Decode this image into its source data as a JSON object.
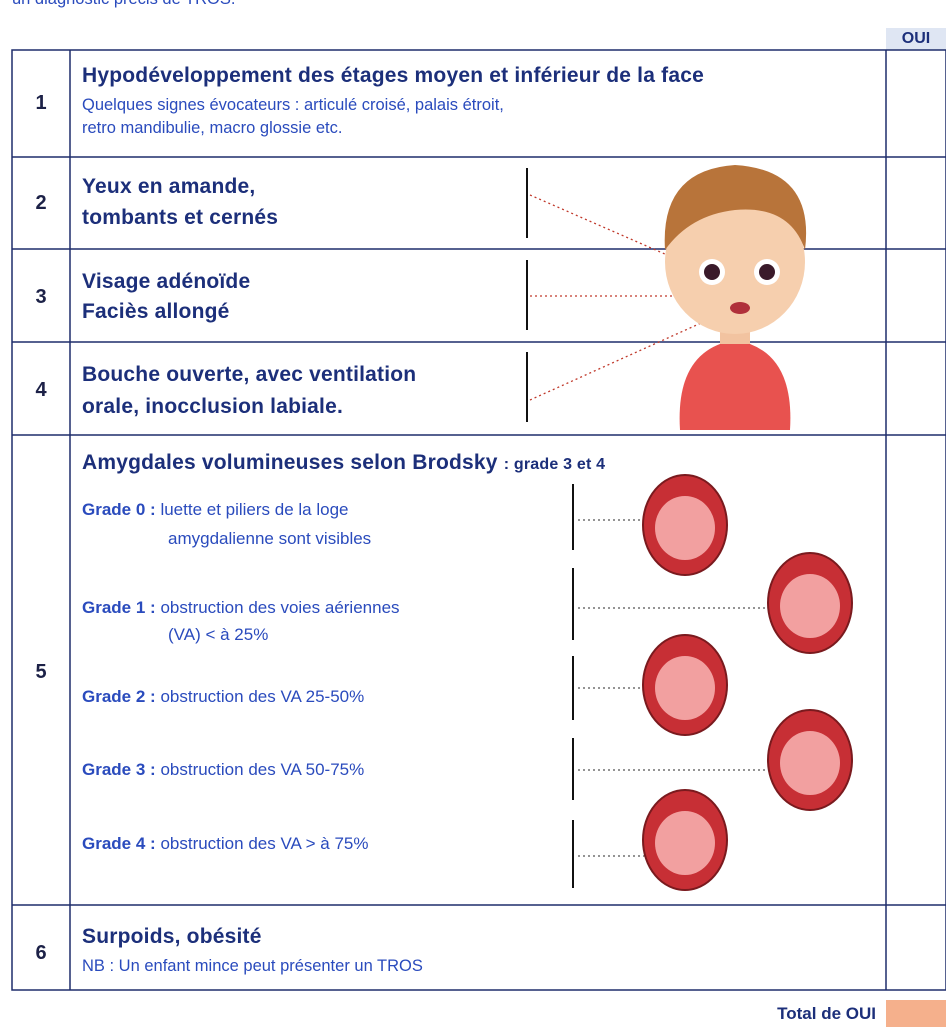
{
  "intro": "un diagnostic précis de TROS.",
  "header": {
    "oui": "OUI"
  },
  "rows": [
    {
      "number": "1",
      "title_lines": [
        "Hypodéveloppement des étages moyen et inférieur de la face"
      ],
      "subtitle_lines": [
        "Quelques signes évocateurs : articulé croisé, palais étroit,",
        "retro mandibulie, macro glossie etc."
      ]
    },
    {
      "number": "2",
      "title_lines": [
        "Yeux en amande,",
        "tombants et cernés"
      ]
    },
    {
      "number": "3",
      "title_lines": [
        "Visage adénoïde",
        "Faciès allongé"
      ]
    },
    {
      "number": "4",
      "title_lines": [
        "Bouche ouverte, avec ventilation",
        "orale, inocclusion labiale."
      ]
    },
    {
      "number": "5",
      "title_lines": [
        "Amygdales volumineuses selon Brodsky"
      ],
      "title_suffix": ": grade 3 et 4",
      "grades": [
        {
          "label": "Grade 0 :",
          "lines": [
            "luette et piliers de la loge",
            "amygdalienne sont visibles"
          ]
        },
        {
          "label": "Grade 1 :",
          "lines": [
            "obstruction des voies aériennes",
            "(VA) < à 25%"
          ]
        },
        {
          "label": "Grade 2 :",
          "lines": [
            "obstruction des VA  25-50%"
          ]
        },
        {
          "label": "Grade 3 :",
          "lines": [
            "obstruction des VA  50-75%"
          ]
        },
        {
          "label": "Grade 4 :",
          "lines": [
            "obstruction des VA  > à 75%"
          ]
        }
      ]
    },
    {
      "number": "6",
      "title_lines": [
        "Surpoids, obésité"
      ],
      "subtitle_lines": [
        "NB : Un enfant mince peut présenter un TROS"
      ]
    }
  ],
  "footer": {
    "total": "Total de OUI"
  }
}
